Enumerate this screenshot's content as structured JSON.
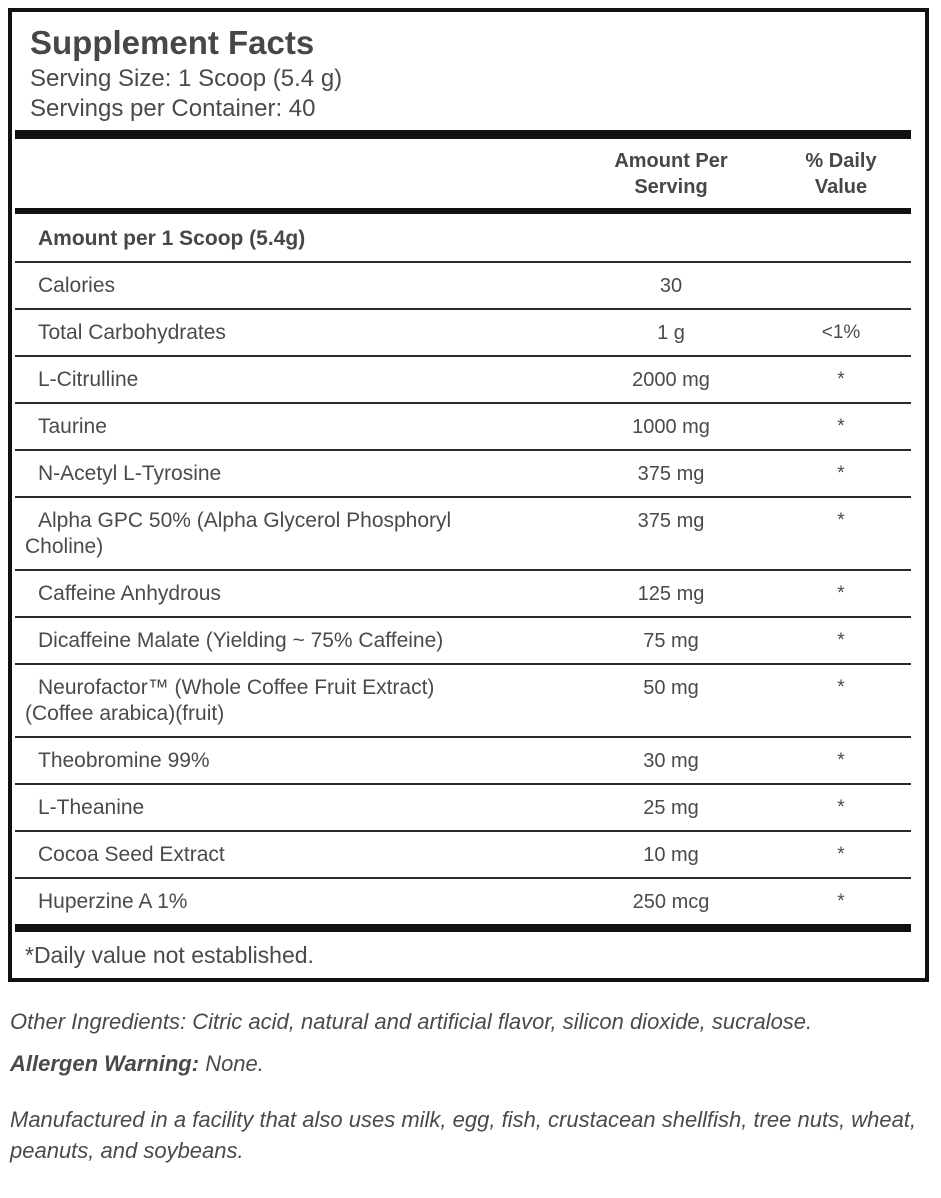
{
  "panel": {
    "title": "Supplement Facts",
    "serving_size": "Serving Size: 1 Scoop (5.4 g)",
    "servings_per_container": "Servings per Container: 40",
    "col_amount_header": "Amount Per\nServing",
    "col_daily_value_header": "% Daily\nValue",
    "section_heading": "Amount per 1 Scoop (5.4g)",
    "rows": [
      {
        "name": "Calories",
        "amount": "30",
        "daily_value": ""
      },
      {
        "name": "Total Carbohydrates",
        "amount": "1 g",
        "daily_value": "<1%"
      },
      {
        "name": "L-Citrulline",
        "amount": "2000 mg",
        "daily_value": "*"
      },
      {
        "name": "Taurine",
        "amount": "1000 mg",
        "daily_value": "*"
      },
      {
        "name": "N-Acetyl L-Tyrosine",
        "amount": "375 mg",
        "daily_value": "*"
      },
      {
        "name": "Alpha GPC 50% (Alpha Glycerol Phosphoryl\nCholine)",
        "amount": "375 mg",
        "daily_value": "*"
      },
      {
        "name": "Caffeine Anhydrous",
        "amount": "125 mg",
        "daily_value": "*"
      },
      {
        "name": "Dicaffeine Malate (Yielding ~ 75% Caffeine)",
        "amount": "75 mg",
        "daily_value": "*"
      },
      {
        "name": "Neurofactor™ (Whole Coffee Fruit Extract)\n(Coffee arabica)(fruit)",
        "amount": "50 mg",
        "daily_value": "*"
      },
      {
        "name": "Theobromine 99%",
        "amount": "30 mg",
        "daily_value": "*"
      },
      {
        "name": "L-Theanine",
        "amount": "25 mg",
        "daily_value": "*"
      },
      {
        "name": "Cocoa Seed Extract",
        "amount": "10 mg",
        "daily_value": "*"
      },
      {
        "name": "Huperzine A 1%",
        "amount": "250 mcg",
        "daily_value": "*"
      }
    ],
    "footnote": "*Daily value not established."
  },
  "footer": {
    "other_ingredients": "Other Ingredients: Citric acid, natural and artificial flavor, silicon dioxide, sucralose.",
    "allergen_label": "Allergen Warning:",
    "allergen_value": "None.",
    "facility": "Manufactured in a facility that also uses milk, egg, fish, crustacean shellfish, tree nuts, wheat, peanuts, and soybeans."
  },
  "colors": {
    "text": "#4a4a4a",
    "border": "#111111",
    "background": "#ffffff"
  }
}
